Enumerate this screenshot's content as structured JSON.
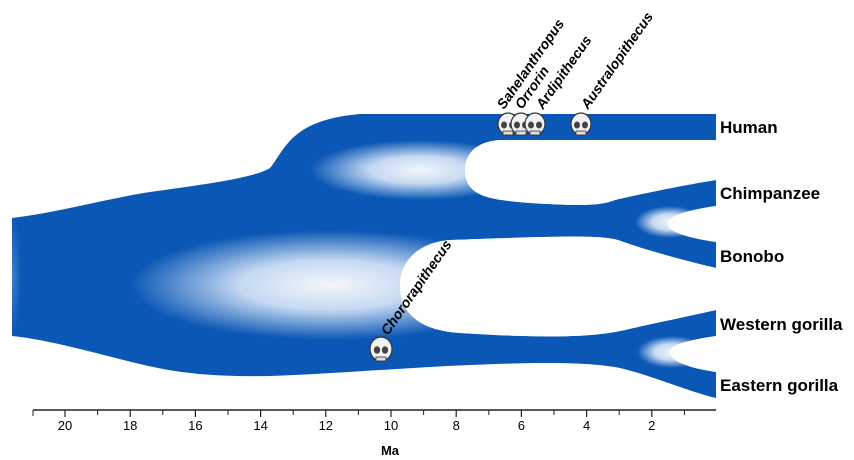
{
  "colors": {
    "lineage": "#0a57b5",
    "lineage_light": "#ffffff",
    "axis": "#222222",
    "skull_fill": "#f2f2f2",
    "skull_stroke": "#333333"
  },
  "species": [
    {
      "id": "human",
      "label": "Human"
    },
    {
      "id": "chimpanzee",
      "label": "Chimpanzee"
    },
    {
      "id": "bonobo",
      "label": "Bonobo"
    },
    {
      "id": "western-gorilla",
      "label": "Western gorilla"
    },
    {
      "id": "eastern-gorilla",
      "label": "Eastern gorilla"
    }
  ],
  "fossils": [
    {
      "id": "sahelanthropus",
      "label": "Sahelanthropus",
      "ma": 6.6
    },
    {
      "id": "orrorin",
      "label": "Orrorin",
      "ma": 6.0
    },
    {
      "id": "ardipithecus",
      "label": "Ardipithecus",
      "ma": 5.5
    },
    {
      "id": "australopithecus",
      "label": "Australopithecus",
      "ma": 4.1
    },
    {
      "id": "chororapithecus",
      "label": "Chororapithecus",
      "ma": 10.4
    }
  ],
  "axis": {
    "title": "Ma",
    "range_ma": [
      22,
      0
    ],
    "tick_labels": [
      "20",
      "18",
      "16",
      "14",
      "12",
      "10",
      "8",
      "6",
      "4",
      "2"
    ],
    "major_ticks": [
      20,
      18,
      16,
      14,
      12,
      10,
      8,
      6,
      4,
      2
    ],
    "minor_ticks": [
      19,
      17,
      15,
      13,
      11,
      9,
      7,
      5,
      3,
      1
    ]
  }
}
